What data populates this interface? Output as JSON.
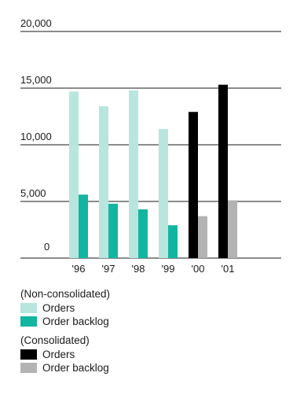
{
  "chart_data": {
    "type": "bar",
    "categories": [
      "'96",
      "'97",
      "'98",
      "'99",
      "'00",
      "'01"
    ],
    "y_ticks": [
      "0",
      "5,000",
      "10,000",
      "15,000",
      "20,000"
    ],
    "ylim": [
      0,
      20000
    ],
    "grid": true,
    "series": [
      {
        "name": "Orders",
        "group": "(Non-consolidated)",
        "color": "#b8e6de",
        "values": [
          14700,
          13400,
          14800,
          11400,
          null,
          null
        ]
      },
      {
        "name": "Order backlog",
        "group": "(Non-consolidated)",
        "color": "#12b5a0",
        "values": [
          5600,
          4800,
          4300,
          2900,
          null,
          null
        ]
      },
      {
        "name": "Orders",
        "group": "(Consolidated)",
        "color": "#000000",
        "values": [
          null,
          null,
          null,
          null,
          12900,
          15300
        ]
      },
      {
        "name": "Order backlog",
        "group": "(Consolidated)",
        "color": "#b3b3b3",
        "values": [
          null,
          null,
          null,
          null,
          3700,
          5100
        ]
      }
    ]
  },
  "legend": {
    "groups": [
      {
        "heading": "(Non-consolidated)",
        "items": [
          {
            "label": "Orders",
            "color": "#b8e6de"
          },
          {
            "label": "Order backlog",
            "color": "#12b5a0"
          }
        ]
      },
      {
        "heading": "(Consolidated)",
        "items": [
          {
            "label": "Orders",
            "color": "#000000"
          },
          {
            "label": "Order backlog",
            "color": "#b3b3b3"
          }
        ]
      }
    ]
  }
}
